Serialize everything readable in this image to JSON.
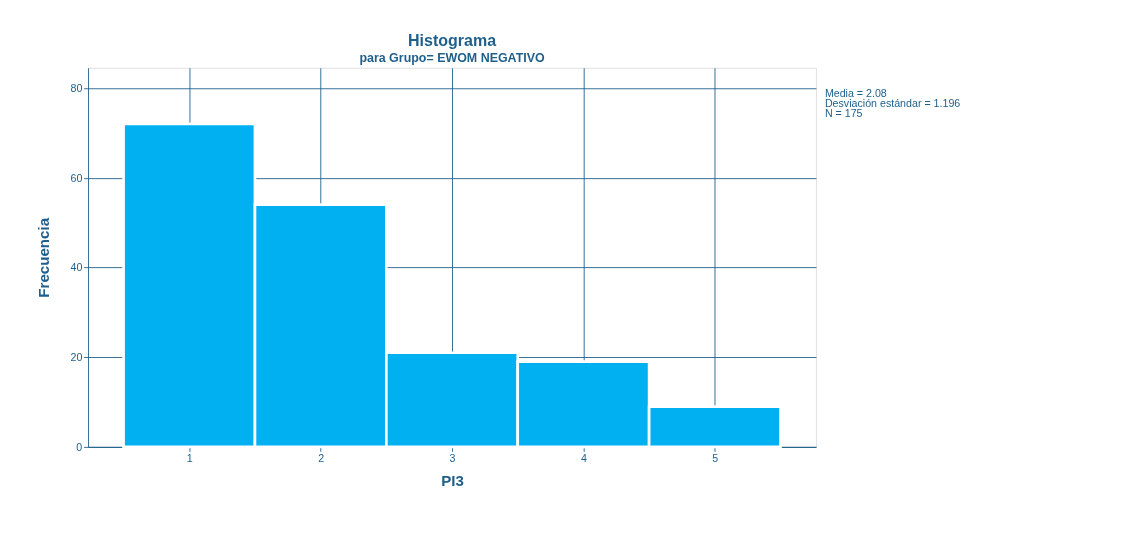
{
  "chart_data": {
    "type": "histogram",
    "title": "Histograma",
    "subtitle": "para Grupo= EWOM NEGATIVO",
    "xlabel": "PI3",
    "ylabel": "Frecuencia",
    "bins": [
      0.5,
      1.5,
      2.5,
      3.5,
      4.5,
      5.5
    ],
    "values": [
      72,
      54,
      21,
      19,
      9
    ],
    "color": "#00b0f0",
    "xlim": [
      0.23,
      5.77
    ],
    "xticks": [
      1,
      2,
      3,
      4,
      5
    ],
    "ylim": [
      0,
      84.5
    ],
    "yticks": [
      0,
      20,
      40,
      60,
      80
    ],
    "grid": true,
    "annotations": [
      "Media = 2.08",
      "Desviación estándar = 1.196",
      "N = 175"
    ]
  }
}
